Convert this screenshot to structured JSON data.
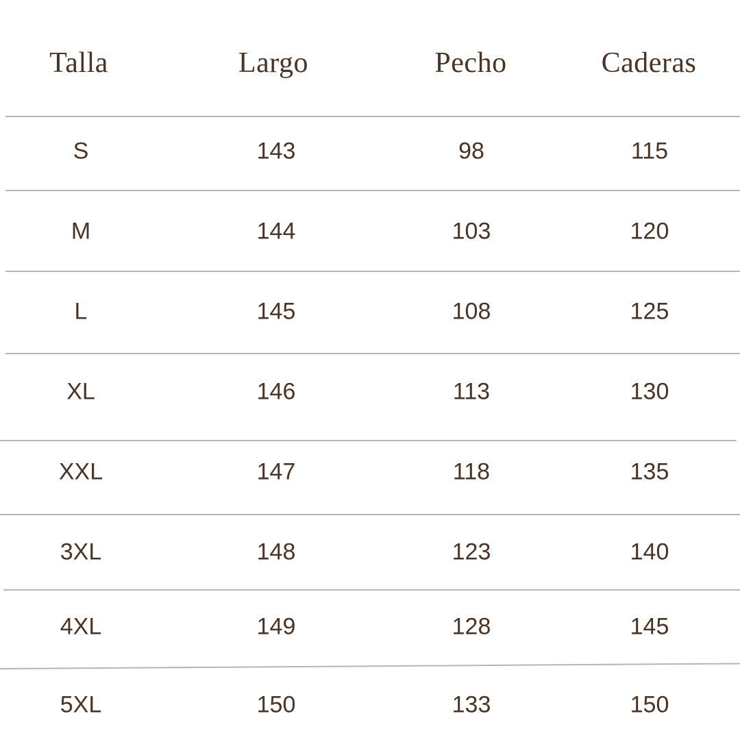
{
  "headers": [
    "Talla",
    "Largo",
    "Pecho",
    "Caderas"
  ],
  "rows": [
    [
      "S",
      "143",
      "98",
      "115"
    ],
    [
      "M",
      "144",
      "103",
      "120"
    ],
    [
      "L",
      "145",
      "108",
      "125"
    ],
    [
      "XL",
      "146",
      "113",
      "130"
    ],
    [
      "XXL",
      "147",
      "118",
      "135"
    ],
    [
      "3XL",
      "148",
      "123",
      "140"
    ],
    [
      "4XL",
      "149",
      "128",
      "145"
    ],
    [
      "5XL",
      "150",
      "133",
      "150"
    ]
  ],
  "colors": {
    "text": "#4a3426",
    "divider": "#b5b5b5",
    "background": "#ffffff"
  }
}
